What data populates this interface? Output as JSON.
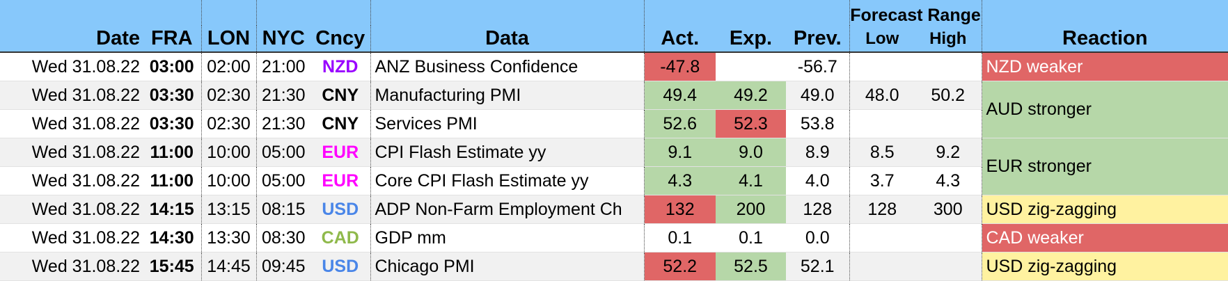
{
  "header": {
    "date": "Date",
    "fra": "FRA",
    "lon": "LON",
    "nyc": "NYC",
    "cncy": "Cncy",
    "data": "Data",
    "act": "Act.",
    "exp": "Exp.",
    "prev": "Prev.",
    "forecast_range": "Forecast Range",
    "low": "Low",
    "high": "High",
    "reaction": "Reaction"
  },
  "colors": {
    "header_bg": "#87c8fb",
    "green": "#b6d7a8",
    "red": "#e06666",
    "yellow": "#fff2a0",
    "NZD": "#9900ff",
    "CNY": "#000000",
    "EUR": "#ff00ff",
    "USD": "#4a86e8",
    "CAD": "#8fb94b"
  },
  "rows": [
    {
      "date": "Wed 31.08.22",
      "fra": "03:00",
      "lon": "02:00",
      "nyc": "21:00",
      "cncy": "NZD",
      "data": "ANZ Business Confidence",
      "act": "-47.8",
      "exp": "",
      "prev": "-56.7",
      "low": "",
      "high": ""
    },
    {
      "date": "Wed 31.08.22",
      "fra": "03:30",
      "lon": "02:30",
      "nyc": "21:30",
      "cncy": "CNY",
      "data": "Manufacturing PMI",
      "act": "49.4",
      "exp": "49.2",
      "prev": "49.0",
      "low": "48.0",
      "high": "50.2"
    },
    {
      "date": "Wed 31.08.22",
      "fra": "03:30",
      "lon": "02:30",
      "nyc": "21:30",
      "cncy": "CNY",
      "data": "Services PMI",
      "act": "52.6",
      "exp": "52.3",
      "prev": "53.8",
      "low": "",
      "high": ""
    },
    {
      "date": "Wed 31.08.22",
      "fra": "11:00",
      "lon": "10:00",
      "nyc": "05:00",
      "cncy": "EUR",
      "data": "CPI Flash Estimate yy",
      "act": "9.1",
      "exp": "9.0",
      "prev": "8.9",
      "low": "8.5",
      "high": "9.2"
    },
    {
      "date": "Wed 31.08.22",
      "fra": "11:00",
      "lon": "10:00",
      "nyc": "05:00",
      "cncy": "EUR",
      "data": "Core CPI Flash Estimate yy",
      "act": "4.3",
      "exp": "4.1",
      "prev": "4.0",
      "low": "3.7",
      "high": "4.3"
    },
    {
      "date": "Wed 31.08.22",
      "fra": "14:15",
      "lon": "13:15",
      "nyc": "08:15",
      "cncy": "USD",
      "data": "ADP Non-Farm Employment Ch",
      "act": "132",
      "exp": "200",
      "prev": "128",
      "low": "128",
      "high": "300"
    },
    {
      "date": "Wed 31.08.22",
      "fra": "14:30",
      "lon": "13:30",
      "nyc": "08:30",
      "cncy": "CAD",
      "data": "GDP mm",
      "act": "0.1",
      "exp": "0.1",
      "prev": "0.0",
      "low": "",
      "high": ""
    },
    {
      "date": "Wed 31.08.22",
      "fra": "15:45",
      "lon": "14:45",
      "nyc": "09:45",
      "cncy": "USD",
      "data": "Chicago PMI",
      "act": "52.2",
      "exp": "52.5",
      "prev": "52.1",
      "low": "",
      "high": ""
    }
  ],
  "reactions": [
    "NZD weaker",
    "AUD stronger",
    "EUR stronger",
    "USD zig-zagging",
    "CAD weaker",
    "USD zig-zagging"
  ]
}
